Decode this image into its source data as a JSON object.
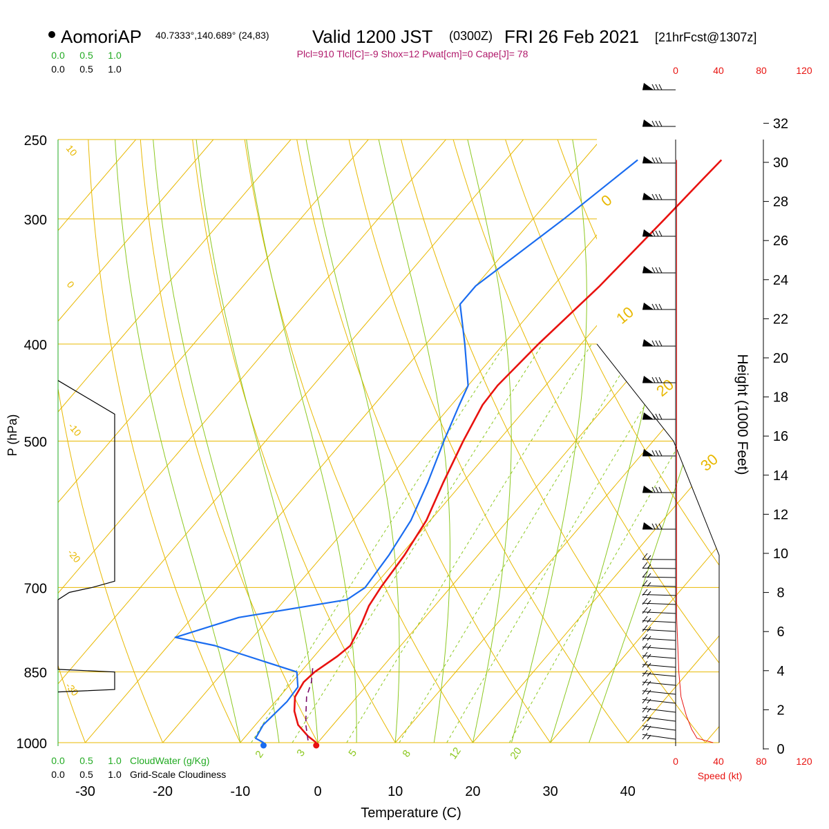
{
  "header": {
    "station": "AomoriAP",
    "coords": "40.7333°,140.689° (24,83)",
    "valid": "Valid 1200 JST",
    "zulu": "(0300Z)",
    "date": "FRI 26 Feb 2021",
    "forecast": "[21hrFcst@1307z]",
    "indices": "Plcl=910 Tlcl[C]=-9 Shox=12 Pwat[cm]=0 Cape[J]= 78"
  },
  "colors": {
    "temperature": "#e8120f",
    "dewpoint": "#1a6cf0",
    "parcel": "#7a0a6a",
    "isotherm": "#e8b800",
    "dry_adiabat": "#e8b800",
    "moist_adiabat": "#8cc820",
    "mixing_ratio": "#8cc820",
    "cloud_water": "#22aa22",
    "speed": "#e8120f",
    "cloudiness": "#000000"
  },
  "chart_data": {
    "type": "line",
    "title": "AomoriAP",
    "xlabel": "Temperature (C)",
    "ylabel": "P (hPa)",
    "right_label": "Height (1000 Feet)",
    "xlim": [
      -30,
      40
    ],
    "x_ticks": [
      "-30",
      "-20",
      "-10",
      "0",
      "10",
      "20",
      "30",
      "40"
    ],
    "y_ticks": [
      {
        "p": 250,
        "label": "250"
      },
      {
        "p": 300,
        "label": "300"
      },
      {
        "p": 400,
        "label": "400"
      },
      {
        "p": 500,
        "label": "500"
      },
      {
        "p": 700,
        "label": "700"
      },
      {
        "p": 850,
        "label": "850"
      },
      {
        "p": 1000,
        "label": "1000"
      }
    ],
    "height_ticks": [
      "0",
      "2",
      "4",
      "6",
      "8",
      "10",
      "12",
      "14",
      "16",
      "18",
      "20",
      "22",
      "24",
      "26",
      "28",
      "30",
      "32"
    ],
    "cloudwater_ticks": [
      "0.0",
      "0.5",
      "1.0"
    ],
    "cloudwater_label": "CloudWater (g/Kg)",
    "cloudiness_ticks": [
      "0.0",
      "0.5",
      "1.0"
    ],
    "cloudiness_label": "Grid-Scale Cloudiness",
    "speed_ticks": [
      "0",
      "40",
      "80",
      "120"
    ],
    "speed_label": "Speed (kt)",
    "dry_adiabat_labels": [
      "10",
      "0",
      "-10",
      "-20",
      "-30"
    ],
    "isotherm_labels": [
      "0",
      "10",
      "20",
      "30"
    ],
    "mixing_ratio_labels": [
      "2",
      "3",
      "5",
      "8",
      "12",
      "20"
    ],
    "series": [
      {
        "name": "Temperature",
        "points": [
          [
            -0.2,
            1000
          ],
          [
            -2,
            985
          ],
          [
            -4.5,
            960
          ],
          [
            -6.5,
            930
          ],
          [
            -8,
            900
          ],
          [
            -8.5,
            870
          ],
          [
            -8.2,
            850
          ],
          [
            -7,
            820
          ],
          [
            -6.5,
            800
          ],
          [
            -7.5,
            760
          ],
          [
            -8.5,
            730
          ],
          [
            -9,
            700
          ],
          [
            -9.5,
            650
          ],
          [
            -10.5,
            600
          ],
          [
            -12.5,
            550
          ],
          [
            -14.5,
            500
          ],
          [
            -16,
            460
          ],
          [
            -16.2,
            440
          ],
          [
            -15.5,
            400
          ],
          [
            -14,
            350
          ],
          [
            -13,
            300
          ],
          [
            -12.5,
            275
          ],
          [
            -12.2,
            262
          ]
        ]
      },
      {
        "name": "Dewpoint",
        "points": [
          [
            -7,
            1000
          ],
          [
            -8.5,
            990
          ],
          [
            -9,
            960
          ],
          [
            -8.5,
            910
          ],
          [
            -8.7,
            880
          ],
          [
            -10.5,
            850
          ],
          [
            -24,
            800
          ],
          [
            -30,
            785
          ],
          [
            -24,
            750
          ],
          [
            -12,
            720
          ],
          [
            -11,
            700
          ],
          [
            -11.5,
            650
          ],
          [
            -12.5,
            600
          ],
          [
            -14.5,
            550
          ],
          [
            -17,
            500
          ],
          [
            -19,
            460
          ],
          [
            -20,
            440
          ],
          [
            -25,
            400
          ],
          [
            -30,
            365
          ],
          [
            -30,
            350
          ],
          [
            -26,
            300
          ],
          [
            -23,
            262
          ]
        ]
      },
      {
        "name": "Parcel",
        "points": [
          [
            -1.5,
            995
          ],
          [
            -3.5,
            960
          ],
          [
            -5,
            930
          ],
          [
            -6.5,
            900
          ],
          [
            -7.5,
            870
          ],
          [
            -8.5,
            850
          ],
          [
            -9,
            840
          ]
        ]
      }
    ],
    "cloudiness_profile": [
      [
        0,
        435
      ],
      [
        0.5,
        470
      ],
      [
        0.5,
        640
      ],
      [
        0.5,
        690
      ],
      [
        0.3,
        700
      ],
      [
        0.1,
        708
      ],
      [
        0,
        720
      ],
      [
        0,
        845
      ],
      [
        0.5,
        850
      ],
      [
        0.5,
        885
      ],
      [
        0,
        890
      ]
    ],
    "speed_profile": [
      [
        35,
        1000
      ],
      [
        20,
        990
      ],
      [
        15,
        970
      ],
      [
        10,
        940
      ],
      [
        5,
        900
      ],
      [
        3,
        850
      ],
      [
        2,
        800
      ],
      [
        1,
        750
      ],
      [
        1,
        700
      ],
      [
        1,
        600
      ],
      [
        1,
        500
      ],
      [
        1,
        400
      ],
      [
        1,
        300
      ],
      [
        1,
        262
      ]
    ],
    "grid": true,
    "legend": "none"
  }
}
